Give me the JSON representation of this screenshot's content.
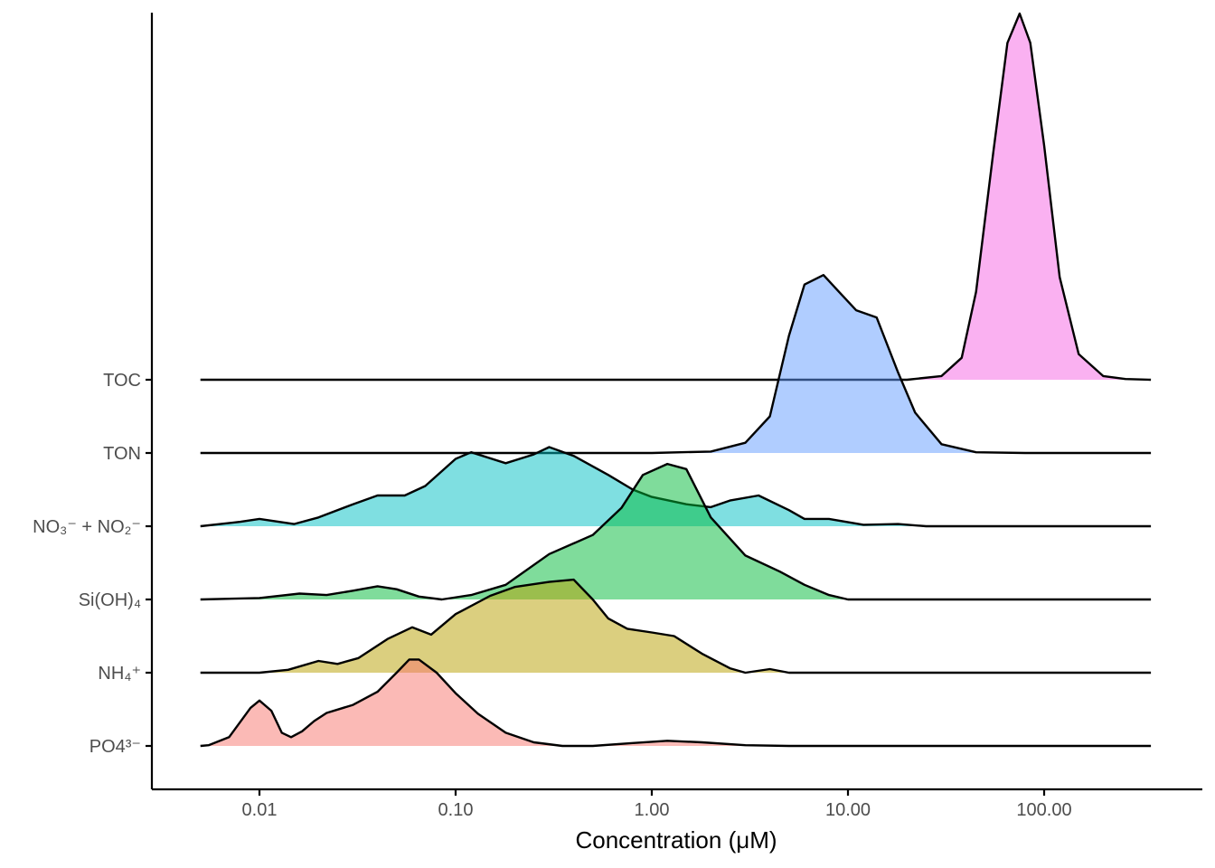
{
  "chart_data": {
    "type": "ridgeline",
    "xlabel": "Concentration (μM)",
    "ylabel": "",
    "x_scale": "log10",
    "xlim": [
      0.005,
      350
    ],
    "x_ticks": [
      0.01,
      0.1,
      1,
      10,
      100
    ],
    "x_tick_labels": [
      "0.01",
      "0.10",
      "1.00",
      "10.00",
      "100.00"
    ],
    "categories": [
      "PO4³⁻",
      "NH₄⁺",
      "Si(OH)₄",
      "NO₃⁻ + NO₂⁻",
      "TON",
      "TOC"
    ],
    "series": [
      {
        "name": "PO4³⁻",
        "color": "#F8766D",
        "density": [
          [
            0.005,
            0.0
          ],
          [
            0.0055,
            0.01
          ],
          [
            0.007,
            0.12
          ],
          [
            0.009,
            0.52
          ],
          [
            0.01,
            0.62
          ],
          [
            0.0115,
            0.48
          ],
          [
            0.013,
            0.18
          ],
          [
            0.0145,
            0.12
          ],
          [
            0.0165,
            0.2
          ],
          [
            0.019,
            0.34
          ],
          [
            0.022,
            0.45
          ],
          [
            0.03,
            0.56
          ],
          [
            0.04,
            0.74
          ],
          [
            0.05,
            1.0
          ],
          [
            0.058,
            1.18
          ],
          [
            0.065,
            1.18
          ],
          [
            0.08,
            1.0
          ],
          [
            0.1,
            0.72
          ],
          [
            0.13,
            0.44
          ],
          [
            0.18,
            0.18
          ],
          [
            0.25,
            0.05
          ],
          [
            0.35,
            0.0
          ],
          [
            0.5,
            0.0
          ],
          [
            0.8,
            0.04
          ],
          [
            1.2,
            0.07
          ],
          [
            1.8,
            0.05
          ],
          [
            3.0,
            0.01
          ],
          [
            5.0,
            0.0
          ],
          [
            350,
            0.0
          ]
        ]
      },
      {
        "name": "NH₄⁺",
        "color": "#B79F00",
        "density": [
          [
            0.005,
            0.0
          ],
          [
            0.01,
            0.0
          ],
          [
            0.014,
            0.04
          ],
          [
            0.02,
            0.16
          ],
          [
            0.025,
            0.12
          ],
          [
            0.032,
            0.2
          ],
          [
            0.045,
            0.46
          ],
          [
            0.06,
            0.62
          ],
          [
            0.075,
            0.52
          ],
          [
            0.1,
            0.8
          ],
          [
            0.15,
            1.05
          ],
          [
            0.2,
            1.17
          ],
          [
            0.3,
            1.24
          ],
          [
            0.4,
            1.27
          ],
          [
            0.5,
            1.0
          ],
          [
            0.6,
            0.74
          ],
          [
            0.75,
            0.6
          ],
          [
            1.0,
            0.55
          ],
          [
            1.3,
            0.5
          ],
          [
            1.8,
            0.26
          ],
          [
            2.5,
            0.06
          ],
          [
            3.0,
            0.0
          ],
          [
            4.0,
            0.05
          ],
          [
            5.0,
            0.0
          ],
          [
            350,
            0.0
          ]
        ]
      },
      {
        "name": "Si(OH)₄",
        "color": "#00BA38",
        "density": [
          [
            0.005,
            0.0
          ],
          [
            0.01,
            0.02
          ],
          [
            0.016,
            0.08
          ],
          [
            0.022,
            0.06
          ],
          [
            0.03,
            0.12
          ],
          [
            0.04,
            0.18
          ],
          [
            0.05,
            0.14
          ],
          [
            0.065,
            0.04
          ],
          [
            0.085,
            0.0
          ],
          [
            0.12,
            0.06
          ],
          [
            0.18,
            0.2
          ],
          [
            0.3,
            0.62
          ],
          [
            0.5,
            0.88
          ],
          [
            0.7,
            1.25
          ],
          [
            0.9,
            1.7
          ],
          [
            1.2,
            1.85
          ],
          [
            1.5,
            1.78
          ],
          [
            2.0,
            1.12
          ],
          [
            3.0,
            0.6
          ],
          [
            4.5,
            0.38
          ],
          [
            6.0,
            0.2
          ],
          [
            8.0,
            0.06
          ],
          [
            10.0,
            0.0
          ],
          [
            350,
            0.0
          ]
        ]
      },
      {
        "name": "NO₃⁻ + NO₂⁻",
        "color": "#00BFC4",
        "density": [
          [
            0.005,
            0.0
          ],
          [
            0.008,
            0.06
          ],
          [
            0.01,
            0.1
          ],
          [
            0.015,
            0.03
          ],
          [
            0.02,
            0.12
          ],
          [
            0.03,
            0.3
          ],
          [
            0.04,
            0.42
          ],
          [
            0.055,
            0.42
          ],
          [
            0.07,
            0.55
          ],
          [
            0.1,
            0.92
          ],
          [
            0.12,
            1.01
          ],
          [
            0.18,
            0.86
          ],
          [
            0.25,
            0.98
          ],
          [
            0.3,
            1.08
          ],
          [
            0.4,
            0.96
          ],
          [
            0.6,
            0.7
          ],
          [
            0.8,
            0.5
          ],
          [
            1.0,
            0.4
          ],
          [
            1.5,
            0.3
          ],
          [
            2.0,
            0.26
          ],
          [
            2.5,
            0.35
          ],
          [
            3.5,
            0.42
          ],
          [
            5.0,
            0.22
          ],
          [
            6.0,
            0.1
          ],
          [
            8.0,
            0.1
          ],
          [
            12.0,
            0.02
          ],
          [
            18.0,
            0.03
          ],
          [
            25.0,
            0.0
          ],
          [
            350,
            0.0
          ]
        ]
      },
      {
        "name": "TON",
        "color": "#619CFF",
        "density": [
          [
            0.005,
            0.0
          ],
          [
            1.0,
            0.0
          ],
          [
            2.0,
            0.02
          ],
          [
            3.0,
            0.14
          ],
          [
            4.0,
            0.5
          ],
          [
            5.0,
            1.6
          ],
          [
            6.0,
            2.3
          ],
          [
            7.5,
            2.43
          ],
          [
            9.0,
            2.2
          ],
          [
            11.0,
            1.95
          ],
          [
            14.0,
            1.85
          ],
          [
            18.0,
            1.1
          ],
          [
            22.0,
            0.55
          ],
          [
            30.0,
            0.12
          ],
          [
            45.0,
            0.01
          ],
          [
            80.0,
            0.0
          ],
          [
            350,
            0.0
          ]
        ]
      },
      {
        "name": "TOC",
        "color": "#F564E3",
        "density": [
          [
            0.005,
            0.0
          ],
          [
            20.0,
            0.0
          ],
          [
            30.0,
            0.05
          ],
          [
            38.0,
            0.3
          ],
          [
            45.0,
            1.2
          ],
          [
            55.0,
            3.1
          ],
          [
            65.0,
            4.6
          ],
          [
            75.0,
            5.0
          ],
          [
            85.0,
            4.6
          ],
          [
            100.0,
            3.2
          ],
          [
            120.0,
            1.4
          ],
          [
            150.0,
            0.35
          ],
          [
            200.0,
            0.05
          ],
          [
            260.0,
            0.01
          ],
          [
            350.0,
            0.0
          ]
        ]
      }
    ],
    "grid": false,
    "legend": "none"
  }
}
